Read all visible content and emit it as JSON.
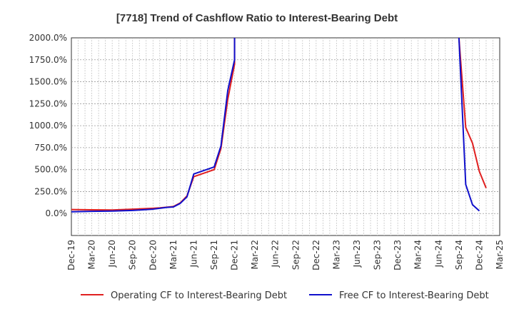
{
  "chart_data": {
    "type": "line",
    "title": "[7718]  Trend of Cashflow Ratio to Interest-Bearing Debt",
    "xlabel": "",
    "ylabel": "",
    "x_tick_labels": [
      "Dec-19",
      "Mar-20",
      "Jun-20",
      "Sep-20",
      "Dec-20",
      "Mar-21",
      "Jun-21",
      "Sep-21",
      "Dec-21",
      "Mar-22",
      "Jun-22",
      "Sep-22",
      "Dec-22",
      "Mar-23",
      "Jun-23",
      "Sep-23",
      "Dec-23",
      "Mar-24",
      "Jun-24",
      "Sep-24",
      "Dec-24",
      "Mar-25"
    ],
    "y_tick_labels": [
      "0.0%",
      "250.0%",
      "500.0%",
      "750.0%",
      "1000.0%",
      "1250.0%",
      "1500.0%",
      "1750.0%",
      "2000.0%"
    ],
    "ylim": [
      -250,
      2000
    ],
    "y_unit": "%",
    "grid": true,
    "legend_position": "bottom",
    "series": [
      {
        "name": "Operating CF to Interest-Bearing Debt",
        "color": "#e02020",
        "x": [
          "Dec-19",
          "Mar-20",
          "Jun-20",
          "Sep-20",
          "Dec-20",
          "Jan-21",
          "Feb-21",
          "Mar-21",
          "Apr-21",
          "May-21",
          "Jun-21",
          "Sep-21",
          "Oct-21",
          "Nov-21",
          "Dec-21",
          "Dec-21",
          null,
          "Sep-24",
          "Oct-24",
          "Nov-24",
          "Dec-24",
          "Jan-25"
        ],
        "values": [
          45,
          42,
          40,
          50,
          60,
          65,
          72,
          80,
          120,
          200,
          420,
          500,
          740,
          1300,
          1700,
          2000,
          null,
          2000,
          980,
          800,
          480,
          290
        ]
      },
      {
        "name": "Free CF to Interest-Bearing Debt",
        "color": "#1010cc",
        "x": [
          "Dec-19",
          "Mar-20",
          "Jun-20",
          "Sep-20",
          "Dec-20",
          "Jan-21",
          "Feb-21",
          "Mar-21",
          "Apr-21",
          "May-21",
          "Jun-21",
          "Sep-21",
          "Oct-21",
          "Nov-21",
          "Dec-21",
          "Dec-21",
          null,
          "Sep-24",
          "Oct-24",
          "Nov-24",
          "Dec-24",
          "Jan-25"
        ],
        "values": [
          20,
          25,
          28,
          35,
          50,
          60,
          70,
          75,
          115,
          190,
          450,
          530,
          770,
          1400,
          1750,
          2000,
          null,
          2000,
          330,
          100,
          30,
          null
        ]
      }
    ]
  }
}
